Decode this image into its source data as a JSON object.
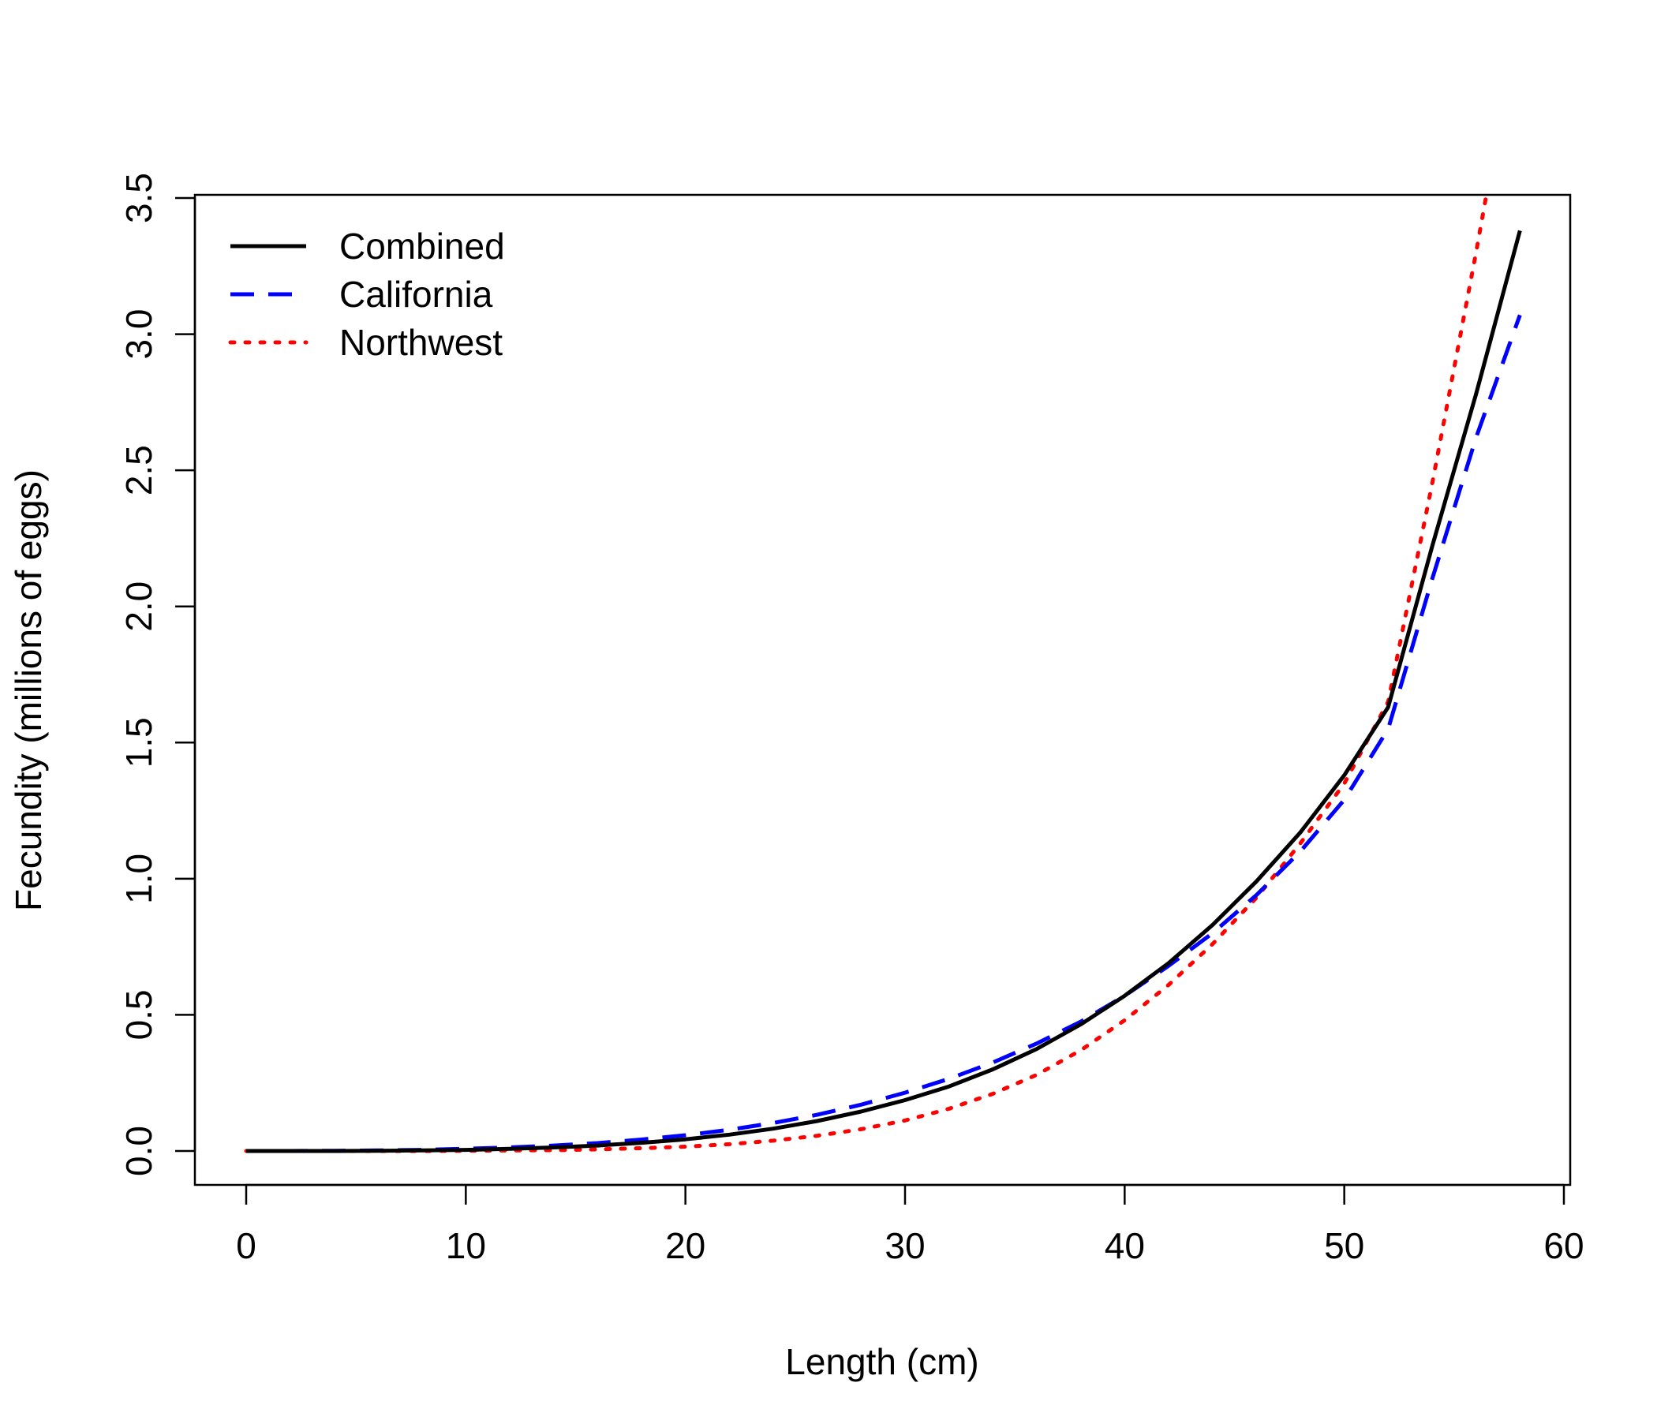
{
  "chart_data": {
    "type": "line",
    "xlabel": "Length (cm)",
    "ylabel": "Fecundity (millions of eggs)",
    "xlim": [
      0,
      60
    ],
    "ylim": [
      0,
      3.5
    ],
    "x_ticks": [
      "0",
      "10",
      "20",
      "30",
      "40",
      "50",
      "60"
    ],
    "y_ticks": [
      "0.0",
      "0.5",
      "1.0",
      "1.5",
      "2.0",
      "2.5",
      "3.0",
      "3.5"
    ],
    "grid": false,
    "legend_position": "top-left",
    "x": [
      0,
      2,
      4,
      6,
      8,
      10,
      12,
      14,
      16,
      18,
      20,
      22,
      24,
      26,
      28,
      30,
      32,
      34,
      36,
      38,
      40,
      42,
      44,
      46,
      48,
      50,
      52,
      54,
      56,
      58
    ],
    "series": [
      {
        "name": "Combined",
        "color": "#000000",
        "line_style": "solid",
        "values": [
          0,
          0,
          0,
          0.001,
          0.002,
          0.004,
          0.008,
          0.013,
          0.02,
          0.03,
          0.043,
          0.06,
          0.082,
          0.11,
          0.145,
          0.187,
          0.237,
          0.3,
          0.375,
          0.465,
          0.57,
          0.69,
          0.83,
          0.99,
          1.17,
          1.38,
          1.63,
          2.22,
          2.78,
          3.38
        ]
      },
      {
        "name": "California",
        "color": "#0000ff",
        "line_style": "dashed",
        "values": [
          0,
          0,
          0.001,
          0.002,
          0.004,
          0.008,
          0.013,
          0.02,
          0.029,
          0.042,
          0.058,
          0.078,
          0.103,
          0.133,
          0.17,
          0.214,
          0.265,
          0.325,
          0.395,
          0.475,
          0.57,
          0.68,
          0.8,
          0.94,
          1.1,
          1.29,
          1.55,
          2.1,
          2.62,
          3.07
        ]
      },
      {
        "name": "Northwest",
        "color": "#ff0000",
        "line_style": "dotted",
        "values": [
          0,
          0,
          0,
          0,
          0,
          0.001,
          0.002,
          0.003,
          0.006,
          0.01,
          0.016,
          0.025,
          0.038,
          0.056,
          0.08,
          0.112,
          0.155,
          0.21,
          0.28,
          0.37,
          0.48,
          0.61,
          0.76,
          0.93,
          1.13,
          1.35,
          1.65,
          2.45,
          3.3,
          4.2
        ]
      }
    ]
  }
}
